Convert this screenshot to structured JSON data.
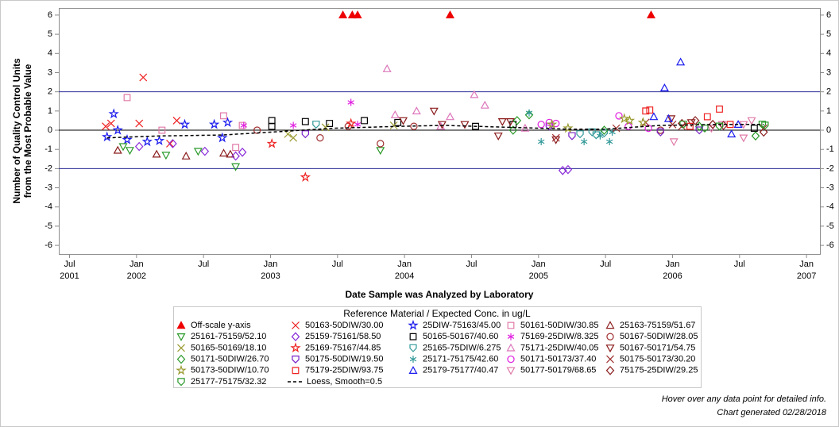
{
  "chart_data": {
    "type": "scatter",
    "y_label": [
      "Number of Quality Control Units",
      "from the Most Probable Value"
    ],
    "x_label": "Date Sample was Analyzed by Laboratory",
    "legend_title": "Reference Material / Expected Conc. in ug/L",
    "footnotes": [
      "Hover over any data point for detailed info.",
      "Chart generated 02/28/2018"
    ],
    "xlim": [
      2001.42,
      2007.1
    ],
    "ylim": [
      -6.45,
      6.37
    ],
    "xticks": [
      {
        "value": 2001.5,
        "label": "Jul",
        "year": "2001"
      },
      {
        "value": 2002.0,
        "label": "Jan",
        "year": "2002"
      },
      {
        "value": 2002.5,
        "label": "Jul"
      },
      {
        "value": 2003.0,
        "label": "Jan",
        "year": "2003"
      },
      {
        "value": 2003.5,
        "label": "Jul"
      },
      {
        "value": 2004.0,
        "label": "Jan",
        "year": "2004"
      },
      {
        "value": 2004.5,
        "label": "Jul"
      },
      {
        "value": 2005.0,
        "label": "Jan",
        "year": "2005"
      },
      {
        "value": 2005.5,
        "label": "Jul"
      },
      {
        "value": 2006.0,
        "label": "Jan",
        "year": "2006"
      },
      {
        "value": 2006.5,
        "label": "Jul"
      },
      {
        "value": 2007.0,
        "label": "Jan",
        "year": "2007"
      }
    ],
    "yticks": [
      -6,
      -5,
      -4,
      -3,
      -2,
      -1,
      0,
      1,
      2,
      3,
      4,
      5,
      6
    ],
    "reference_lines": [
      {
        "value": 2,
        "color": "#2e2e9a"
      },
      {
        "value": 0,
        "color": "#000000"
      },
      {
        "value": -2,
        "color": "#2e2e9a"
      }
    ],
    "series": [
      {
        "name": "Off-scale y-axis",
        "color": "#ee0000",
        "marker": "triangle",
        "filled": true,
        "x": [
          2003.54,
          2003.61,
          2003.65,
          2004.34,
          2005.84
        ],
        "values": [
          6,
          6,
          6,
          6,
          6
        ]
      },
      {
        "name": "50163-50DIW/30.00",
        "color": "#ee2222",
        "marker": "x",
        "x": [
          2001.77,
          2001.81,
          2002.02,
          2002.05,
          2002.3,
          2002.25
        ],
        "values": [
          0.2,
          0.35,
          0.35,
          2.75,
          0.5,
          -0.7
        ]
      },
      {
        "name": "25DIW-75163/45.00",
        "color": "#1a1aee",
        "marker": "star",
        "x": [
          2001.78,
          2001.83,
          2001.86,
          2001.93,
          2002.08,
          2002.17,
          2002.36,
          2002.58,
          2002.64,
          2002.68
        ],
        "values": [
          -0.35,
          0.85,
          0.0,
          -0.5,
          -0.6,
          -0.55,
          0.3,
          0.3,
          -0.4,
          0.4
        ]
      },
      {
        "name": "50161-50DIW/30.85",
        "color": "#e07aa8",
        "marker": "square",
        "x": [
          2001.93,
          2002.19,
          2002.65,
          2002.74,
          2002.79
        ],
        "values": [
          1.7,
          0.0,
          0.75,
          -0.9,
          0.25
        ]
      },
      {
        "name": "25163-75159/51.67",
        "color": "#8b1e1e",
        "marker": "triangle",
        "x": [
          2001.86,
          2002.15,
          2002.37,
          2002.65,
          2002.7
        ],
        "values": [
          -1.05,
          -1.25,
          -1.35,
          -1.2,
          -1.25
        ]
      },
      {
        "name": "25161-75159/52.10",
        "color": "#2a9a2a",
        "marker": "down-triangle",
        "x": [
          2001.9,
          2001.95,
          2002.22,
          2002.46,
          2002.74,
          2003.82
        ],
        "values": [
          -0.85,
          -1.05,
          -1.3,
          -1.1,
          -1.9,
          -1.05
        ]
      },
      {
        "name": "25159-75161/58.50",
        "color": "#8a2bd8",
        "marker": "diamond",
        "x": [
          2002.02,
          2002.27,
          2002.51,
          2002.74,
          2002.79,
          2005.18,
          2005.22
        ],
        "values": [
          -0.85,
          -0.7,
          -1.1,
          -1.35,
          -1.15,
          -2.1,
          -2.05
        ]
      },
      {
        "name": "50165-50167/40.60",
        "color": "#000000",
        "marker": "square",
        "x": [
          2003.01,
          2003.01,
          2003.26,
          2003.44,
          2003.7,
          2003.95,
          2004.53,
          2004.81,
          2006.61
        ],
        "values": [
          0.5,
          0.2,
          0.45,
          0.35,
          0.5,
          0.4,
          0.2,
          0.3,
          0.1
        ]
      },
      {
        "name": "75169-25DIW/8.325",
        "color": "#e020e0",
        "marker": "asterisk",
        "x": [
          2002.8,
          2003.17,
          2003.6,
          2003.65
        ],
        "values": [
          0.25,
          0.25,
          1.45,
          0.3
        ]
      },
      {
        "name": "50167-50DIW/28.05",
        "color": "#a03030",
        "marker": "circle",
        "x": [
          2002.9,
          2003.37,
          2003.58,
          2003.82,
          2004.07,
          2005.91
        ],
        "values": [
          0.0,
          -0.4,
          0.2,
          -0.7,
          0.2,
          0.0
        ]
      },
      {
        "name": "50165-50169/18.10",
        "color": "#9a9a30",
        "marker": "x",
        "x": [
          2003.13,
          2003.17,
          2003.41,
          2003.92
        ],
        "values": [
          -0.2,
          -0.4,
          0.15,
          0.25
        ]
      },
      {
        "name": "25169-75167/44.85",
        "color": "#ee2222",
        "marker": "star",
        "x": [
          2003.01,
          2003.26,
          2003.6
        ],
        "values": [
          -0.7,
          -2.45,
          0.35
        ]
      },
      {
        "name": "25165-75DIW/6.275",
        "color": "#339999",
        "marker": "shield",
        "x": [
          2003.34,
          2005.4,
          2005.43,
          2005.49,
          2005.31
        ],
        "values": [
          0.3,
          -0.1,
          -0.25,
          -0.15,
          -0.2
        ]
      },
      {
        "name": "75171-25DIW/40.05",
        "color": "#dd77bb",
        "marker": "triangle",
        "x": [
          2003.87,
          2003.93,
          2004.09,
          2004.27,
          2004.52,
          2004.6,
          2004.34,
          2004.9
        ],
        "values": [
          3.2,
          0.8,
          1.0,
          0.2,
          1.85,
          1.3,
          0.7,
          0.1
        ]
      },
      {
        "name": "50167-50171/54.75",
        "color": "#8b1a1a",
        "marker": "down-triangle",
        "x": [
          2003.99,
          2004.22,
          2004.28,
          2004.45,
          2004.7,
          2004.73,
          2004.79,
          2005.13,
          2005.99,
          2006.14
        ],
        "values": [
          0.5,
          1.0,
          0.3,
          0.3,
          -0.3,
          0.45,
          0.45,
          -0.5,
          0.6,
          0.4
        ]
      },
      {
        "name": "50171-50DIW/26.70",
        "color": "#2a9a2a",
        "marker": "diamond",
        "x": [
          2004.81,
          2004.84,
          2004.93,
          2005.49,
          2006.2,
          2006.62
        ],
        "values": [
          0.0,
          0.5,
          0.8,
          0.0,
          0.2,
          -0.3
        ]
      },
      {
        "name": "50175-50DIW/19.50",
        "color": "#7a22c8",
        "marker": "shield",
        "x": [
          2003.26,
          2005.08,
          2005.25,
          2005.91,
          2006.2
        ],
        "values": [
          -0.2,
          0.2,
          -0.3,
          -0.1,
          0.0
        ]
      },
      {
        "name": "25171-75175/42.60",
        "color": "#339999",
        "marker": "asterisk",
        "x": [
          2004.93,
          2005.02,
          2005.34,
          2005.53,
          2005.46,
          2005.55
        ],
        "values": [
          0.9,
          -0.6,
          -0.6,
          -0.6,
          -0.3,
          -0.1
        ]
      },
      {
        "name": "50171-50173/37.40",
        "color": "#e020e0",
        "marker": "circle",
        "x": [
          2005.02,
          2005.08,
          2005.13,
          2005.6,
          2005.67,
          2005.82
        ],
        "values": [
          0.3,
          0.4,
          0.35,
          0.75,
          0.2,
          0.1
        ]
      },
      {
        "name": "50175-50173/30.20",
        "color": "#a03030",
        "marker": "x",
        "x": [
          2005.13,
          2005.58,
          2005.8,
          2006.0,
          2006.07,
          2006.68
        ],
        "values": [
          -0.4,
          0.1,
          0.4,
          0.3,
          0.2,
          0.1
        ]
      },
      {
        "name": "50173-50DIW/10.70",
        "color": "#9a9a30",
        "marker": "star",
        "x": [
          2005.1,
          2005.22,
          2005.64,
          2005.68,
          2005.78
        ],
        "values": [
          0.3,
          0.1,
          0.6,
          0.5,
          0.4
        ]
      },
      {
        "name": "75179-25DIW/93.75",
        "color": "#ee2222",
        "marker": "square",
        "x": [
          2005.8,
          2005.83,
          2006.26,
          2006.35,
          2006.43,
          2006.13
        ],
        "values": [
          1.0,
          1.05,
          0.7,
          1.1,
          0.3,
          0.2
        ]
      },
      {
        "name": "25179-75177/40.47",
        "color": "#1a1aee",
        "marker": "triangle",
        "x": [
          2005.86,
          2005.94,
          2006.06,
          2005.97,
          2006.49,
          2006.44
        ],
        "values": [
          0.7,
          2.2,
          3.55,
          0.6,
          0.3,
          -0.2
        ]
      },
      {
        "name": "50177-50179/68.65",
        "color": "#e07aa8",
        "marker": "down-triangle",
        "x": [
          2006.01,
          2006.53,
          2006.53,
          2006.59,
          2006.37,
          2006.29
        ],
        "values": [
          -0.6,
          0.3,
          -0.4,
          0.5,
          0.3,
          0.1
        ]
      },
      {
        "name": "75175-25DIW/29.25",
        "color": "#8b1e1e",
        "marker": "diamond",
        "x": [
          2006.07,
          2006.17,
          2006.3,
          2006.38,
          2006.68
        ],
        "values": [
          0.35,
          0.5,
          0.3,
          0.25,
          -0.1
        ]
      },
      {
        "name": "25177-75175/32.32",
        "color": "#2a9a2a",
        "marker": "shield",
        "x": [
          2006.08,
          2006.24,
          2006.35,
          2006.67,
          2006.69
        ],
        "values": [
          0.3,
          0.1,
          0.2,
          0.3,
          0.25
        ]
      },
      {
        "name": "Loess, Smooth=0.5",
        "color": "#000000",
        "marker": "line",
        "dashed": true,
        "x": [
          2001.78,
          2002.17,
          2002.64,
          2003.0,
          2003.47,
          2003.95,
          2004.3,
          2004.78,
          2005.25,
          2005.49,
          2005.91,
          2006.32,
          2006.68
        ],
        "values": [
          -0.4,
          -0.3,
          -0.25,
          -0.1,
          0.1,
          0.2,
          0.25,
          0.15,
          0.05,
          0.05,
          0.25,
          0.3,
          0.3
        ]
      }
    ]
  }
}
